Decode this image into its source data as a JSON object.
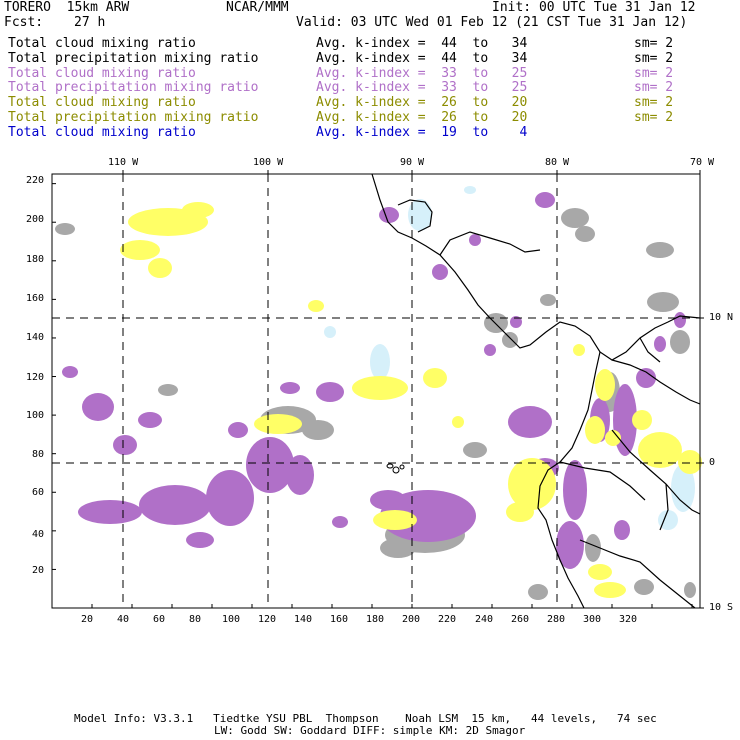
{
  "header": {
    "model_name": "TORERO  15km ARW",
    "org": "NCAR/MMM",
    "init": "Init: 00 UTC Tue 31 Jan 12",
    "fcst_label": "Fcst:",
    "fcst_value": "27 h",
    "valid": "Valid: 03 UTC Wed 01 Feb 12 (21 CST Tue 31 Jan 12)"
  },
  "legend": [
    {
      "field": "Total cloud mixing ratio",
      "stat": "Avg. k-index =  44  to   34",
      "sm": "sm= 2",
      "color": "#000000"
    },
    {
      "field": "Total precipitation mixing ratio",
      "stat": "Avg. k-index =  44  to   34",
      "sm": "sm= 2",
      "color": "#000000"
    },
    {
      "field": "Total cloud mixing ratio",
      "stat": "Avg. k-index =  33  to   25",
      "sm": "sm= 2",
      "color": "#b070c8"
    },
    {
      "field": "Total precipitation mixing ratio",
      "stat": "Avg. k-index =  33  to   25",
      "sm": "sm= 2",
      "color": "#b070c8"
    },
    {
      "field": "Total cloud mixing ratio",
      "stat": "Avg. k-index =  26  to   20",
      "sm": "sm= 2",
      "color": "#8c8c00"
    },
    {
      "field": "Total precipitation mixing ratio",
      "stat": "Avg. k-index =  26  to   20",
      "sm": "sm= 2",
      "color": "#8c8c00"
    },
    {
      "field": "Total cloud mixing ratio",
      "stat": "Avg. k-index =  19  to    4",
      "sm": "",
      "color": "#0000cc"
    }
  ],
  "axes": {
    "top_lon_labels": [
      "110 W",
      "100 W",
      "90 W",
      "80 W",
      "70 W"
    ],
    "right_lat_labels": [
      "10 N",
      "0",
      "10 S"
    ],
    "x_ticks": [
      "20",
      "40",
      "60",
      "80",
      "100",
      "120",
      "140",
      "160",
      "180",
      "200",
      "220",
      "240",
      "260",
      "280",
      "300",
      "320"
    ],
    "y_ticks": [
      "20",
      "40",
      "60",
      "80",
      "100",
      "120",
      "140",
      "160",
      "180",
      "200",
      "220"
    ]
  },
  "colors": {
    "gray": "#a8a8a8",
    "purple": "#b070c8",
    "yellow": "#ffff66",
    "lightblue": "#d6f0fa"
  },
  "footer": {
    "line1": "Model Info: V3.3.1   Tiedtke YSU PBL  Thompson    Noah LSM  15 km,   44 levels,   74 sec",
    "line2": "LW: Godd SW: Goddard DIFF: simple KM: 2D Smagor"
  }
}
